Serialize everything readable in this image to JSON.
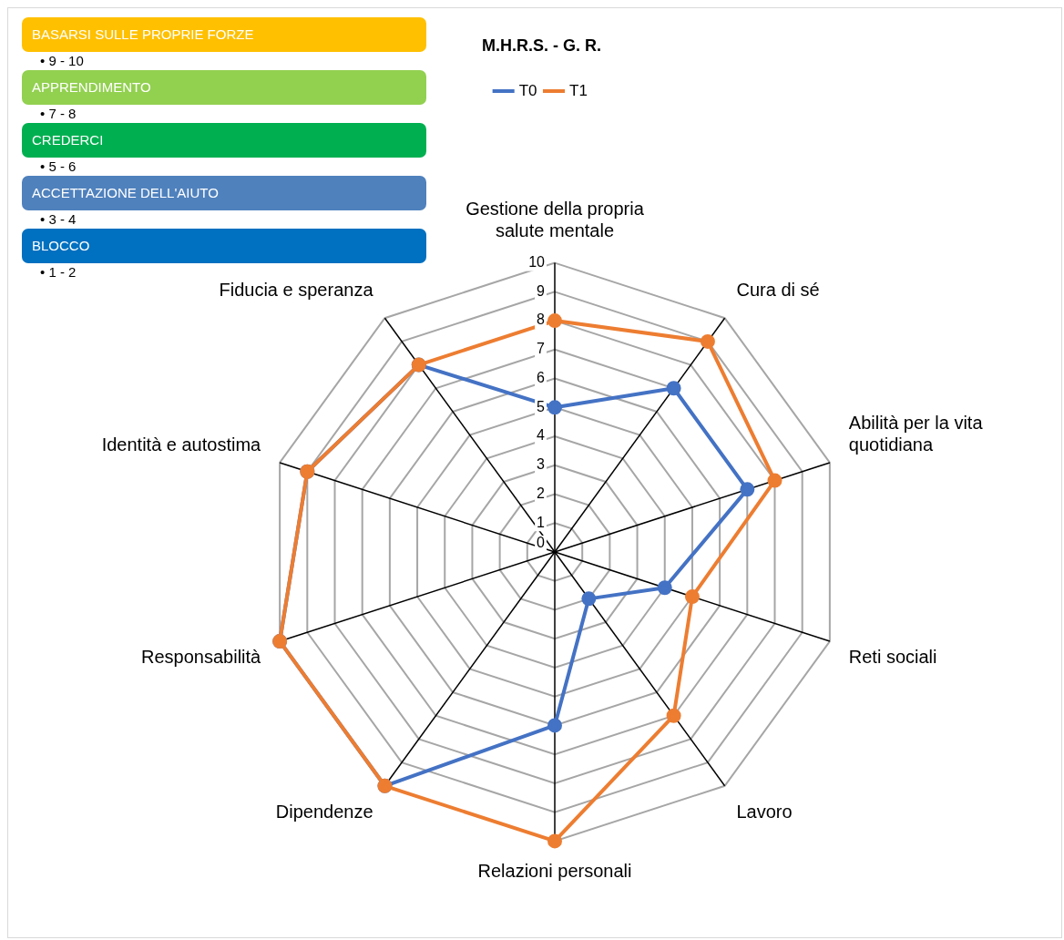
{
  "chart_data": [
    {
      "type": "radar",
      "title": "M.H.R.S. - G. R.",
      "categories": [
        "Gestione della propria salute mentale",
        "Cura di sé",
        "Abilità per la vita quotidiana",
        "Reti sociali",
        "Lavoro",
        "Relazioni personali",
        "Dipendenze",
        "Responsabilità",
        "Identità e autostima",
        "Fiducia e speranza"
      ],
      "series": [
        {
          "name": "T0",
          "color": "#4472c4",
          "values": [
            5,
            7,
            7,
            4,
            2,
            6,
            10,
            10,
            9,
            8
          ]
        },
        {
          "name": "T1",
          "color": "#ed7d31",
          "values": [
            8,
            9,
            8,
            5,
            7,
            10,
            10,
            10,
            9,
            8
          ]
        }
      ],
      "ylim": [
        0,
        10
      ],
      "yticks": [
        0,
        1,
        2,
        3,
        4,
        5,
        6,
        7,
        8,
        9,
        10
      ],
      "grid": true,
      "legend": "top",
      "marker": "circle",
      "line_style": "solid"
    },
    {
      "type": "other",
      "annotations": [
        "BASARSI SULLE PROPRIE FORZE",
        "• 9 - 10",
        "APPRENDIMENTO",
        "• 7 - 8",
        "CREDERCI",
        "• 5 - 6",
        "ACCETTAZIONE DELL'AIUTO",
        "• 3 - 4",
        "BLOCCO",
        "• 1 - 2"
      ],
      "colors": [
        "#ffc000",
        "#92d050",
        "#00b050",
        "#4f81bd",
        "#0070c0"
      ]
    }
  ]
}
